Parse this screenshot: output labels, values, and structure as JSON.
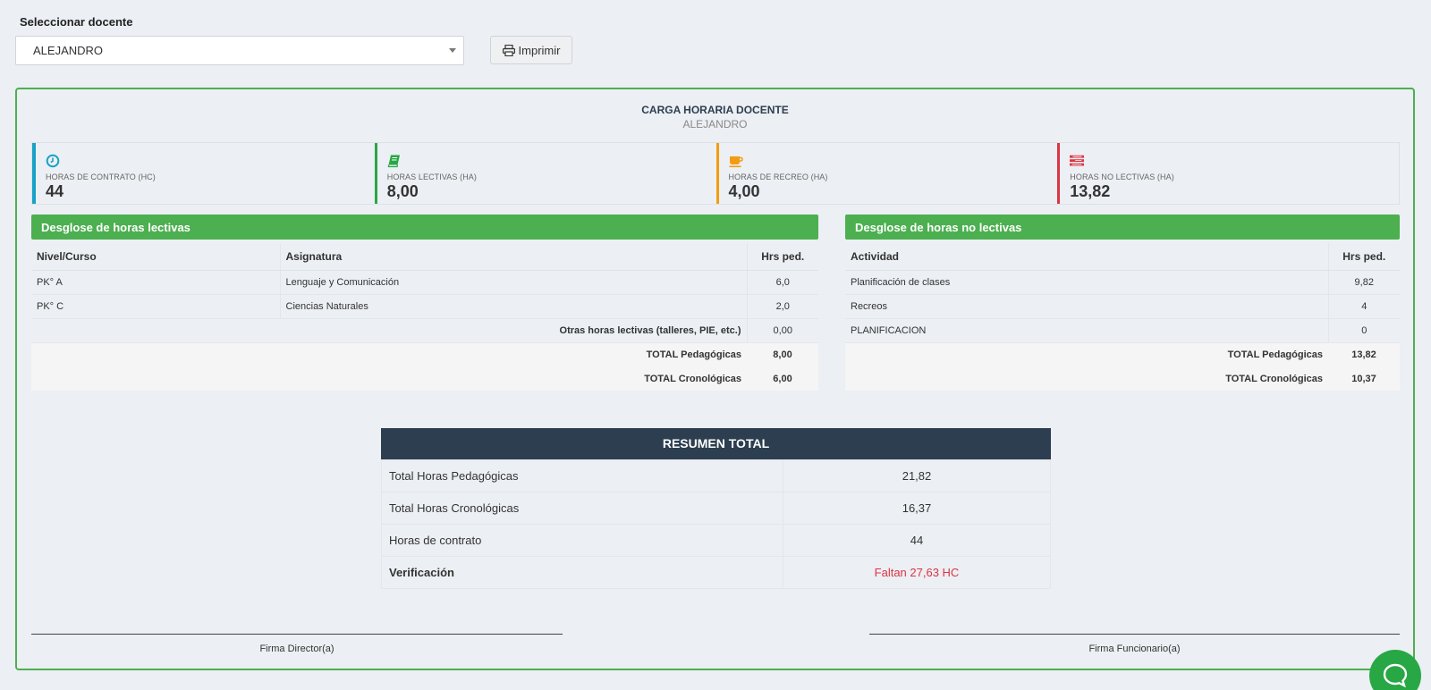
{
  "selector": {
    "label": "Seleccionar docente",
    "selected": "ALEJANDRO"
  },
  "print_button": {
    "label": "Imprimir"
  },
  "report": {
    "title": "CARGA HORARIA DOCENTE",
    "teacher": "ALEJANDRO"
  },
  "stats": [
    {
      "label": "HORAS DE CONTRATO (HC)",
      "value": "44",
      "icon": "clock-icon",
      "color": "#17a2c8"
    },
    {
      "label": "HORAS LECTIVAS (HA)",
      "value": "8,00",
      "icon": "book-icon",
      "color": "#28a745"
    },
    {
      "label": "HORAS DE RECREO (HA)",
      "value": "4,00",
      "icon": "coffee-icon",
      "color": "#f39c12"
    },
    {
      "label": "HORAS NO LECTIVAS (HA)",
      "value": "13,82",
      "icon": "tasks-icon",
      "color": "#dc3545"
    }
  ],
  "lectivas": {
    "title": "Desglose de horas lectivas",
    "headers": [
      "Nivel/Curso",
      "Asignatura",
      "Hrs ped."
    ],
    "rows": [
      {
        "nivel": "PK° A",
        "asignatura": "Lenguaje y Comunicación",
        "hrs": "6,0"
      },
      {
        "nivel": "PK° C",
        "asignatura": "Ciencias Naturales",
        "hrs": "2,0"
      }
    ],
    "otras_label": "Otras horas lectivas (talleres, PIE, etc.)",
    "otras_value": "0,00",
    "total_ped_label": "TOTAL Pedagógicas",
    "total_ped_value": "8,00",
    "total_cron_label": "TOTAL Cronológicas",
    "total_cron_value": "6,00"
  },
  "no_lectivas": {
    "title": "Desglose de horas no lectivas",
    "headers": [
      "Actividad",
      "Hrs ped."
    ],
    "rows": [
      {
        "actividad": "Planificación de clases",
        "hrs": "9,82"
      },
      {
        "actividad": "Recreos",
        "hrs": "4"
      },
      {
        "actividad": "PLANIFICACION",
        "hrs": "0"
      }
    ],
    "total_ped_label": "TOTAL Pedagógicas",
    "total_ped_value": "13,82",
    "total_cron_label": "TOTAL Cronológicas",
    "total_cron_value": "10,37"
  },
  "summary": {
    "title": "RESUMEN TOTAL",
    "rows": [
      {
        "label": "Total Horas Pedagógicas",
        "value": "21,82"
      },
      {
        "label": "Total Horas Cronológicas",
        "value": "16,37"
      },
      {
        "label": "Horas de contrato",
        "value": "44"
      }
    ],
    "verification_label": "Verificación",
    "verification_value": "Faltan 27,63 HC"
  },
  "signatures": {
    "director": "Firma Director(a)",
    "funcionario": "Firma Funcionario(a)"
  },
  "colors": {
    "accent_green": "#4caf50",
    "header_dark": "#2c3e50",
    "warning_red": "#dc3545"
  }
}
